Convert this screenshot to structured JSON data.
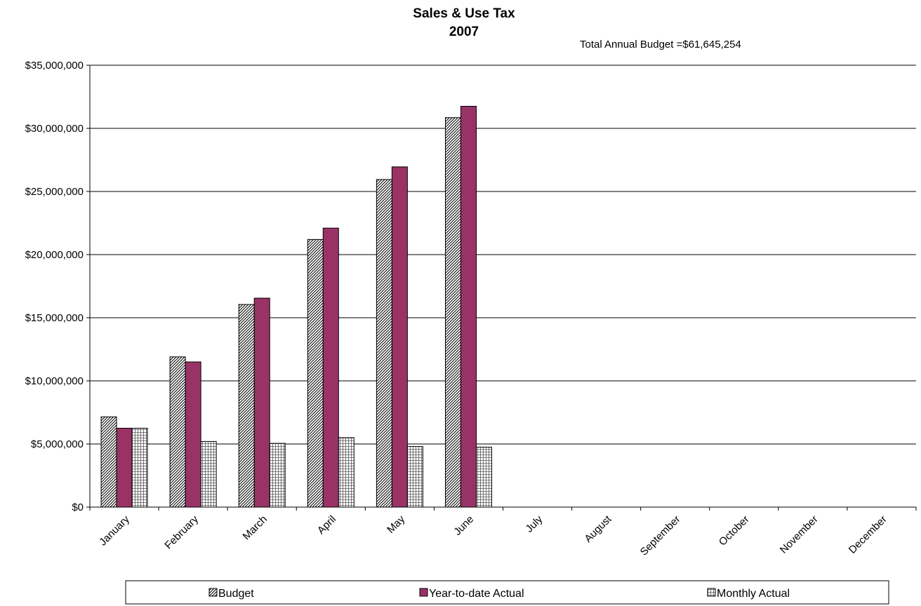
{
  "chart_data": {
    "type": "bar",
    "title": "Sales & Use Tax",
    "subtitle": "2007",
    "annotation": "Total Annual Budget  =$61,645,254",
    "categories": [
      "January",
      "February",
      "March",
      "April",
      "May",
      "June",
      "July",
      "August",
      "September",
      "October",
      "November",
      "December"
    ],
    "series": [
      {
        "name": "Budget",
        "values": [
          7150000,
          11900000,
          16050000,
          21200000,
          25950000,
          30850000,
          null,
          null,
          null,
          null,
          null,
          null
        ],
        "color": "#ffffff",
        "pattern": "diagonal-hatch"
      },
      {
        "name": "Year-to-date Actual",
        "values": [
          6250000,
          11500000,
          16550000,
          22100000,
          26950000,
          31750000,
          null,
          null,
          null,
          null,
          null,
          null
        ],
        "color": "#993366",
        "pattern": "solid"
      },
      {
        "name": "Monthly Actual",
        "values": [
          6250000,
          5200000,
          5050000,
          5500000,
          4800000,
          4750000,
          null,
          null,
          null,
          null,
          null,
          null
        ],
        "color": "#ffffff",
        "pattern": "grid-hatch"
      }
    ],
    "y_ticks": [
      "$0",
      "$5,000,000",
      "$10,000,000",
      "$15,000,000",
      "$20,000,000",
      "$25,000,000",
      "$30,000,000",
      "$35,000,000"
    ],
    "ylim": [
      0,
      35000000
    ],
    "grid": true,
    "legend_position": "bottom"
  }
}
